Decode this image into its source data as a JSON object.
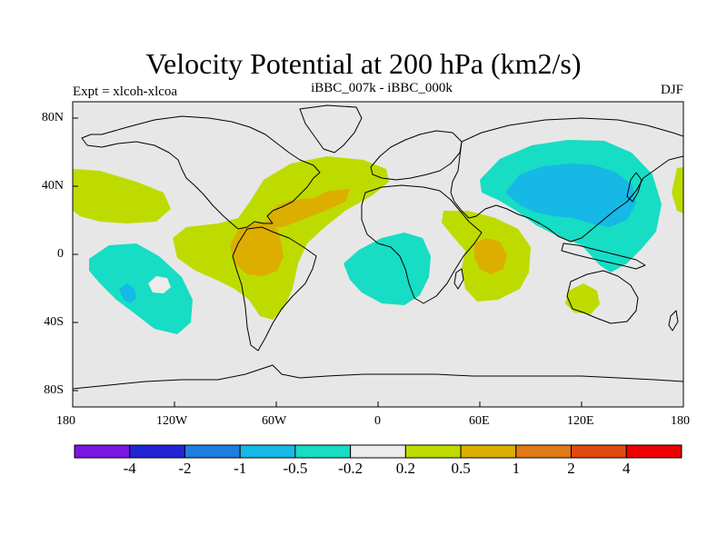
{
  "title": "Velocity Potential at 200 hPa (km2/s)",
  "left_label": "Expt = xlcoh-xlcoa",
  "center_label": "iBBC_007k - iBBC_000k",
  "right_label": "DJF",
  "lat_ticks": [
    "80N",
    "40N",
    "0",
    "40S",
    "80S"
  ],
  "lon_ticks": [
    "180",
    "120W",
    "60W",
    "0",
    "60E",
    "120E",
    "180"
  ],
  "colorbar": {
    "colors": [
      "#7a16e0",
      "#2323d6",
      "#1e7fe0",
      "#16b8e6",
      "#16ddc4",
      "#ececec",
      "#bedb00",
      "#dcae00",
      "#e07a16",
      "#e04a10",
      "#ee0000"
    ],
    "labels": [
      "-4",
      "-2",
      "-1",
      "-0.5",
      "-0.2",
      "0.2",
      "0.5",
      "1",
      "2",
      "4"
    ]
  },
  "colors": {
    "background": "#e7e7e7",
    "coast": "#000000"
  }
}
